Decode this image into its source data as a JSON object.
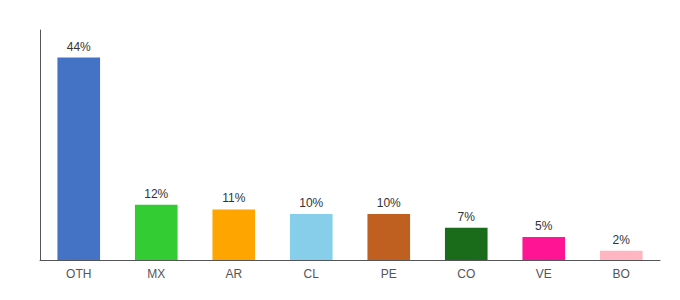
{
  "chart_data": {
    "type": "bar",
    "categories": [
      "OTH",
      "MX",
      "AR",
      "CL",
      "PE",
      "CO",
      "VE",
      "BO"
    ],
    "values": [
      44,
      12,
      11,
      10,
      10,
      7,
      5,
      2
    ],
    "value_labels": [
      "44%",
      "12%",
      "11%",
      "10%",
      "10%",
      "7%",
      "5%",
      "2%"
    ],
    "colors": [
      "#4472C4",
      "#33CC33",
      "#FFA500",
      "#87CEEB",
      "#C06020",
      "#1A6B1A",
      "#FF1493",
      "#FFB6C1"
    ],
    "ylim": [
      0,
      50
    ],
    "grid": false,
    "data_labels": true,
    "tick_labels": "x"
  }
}
